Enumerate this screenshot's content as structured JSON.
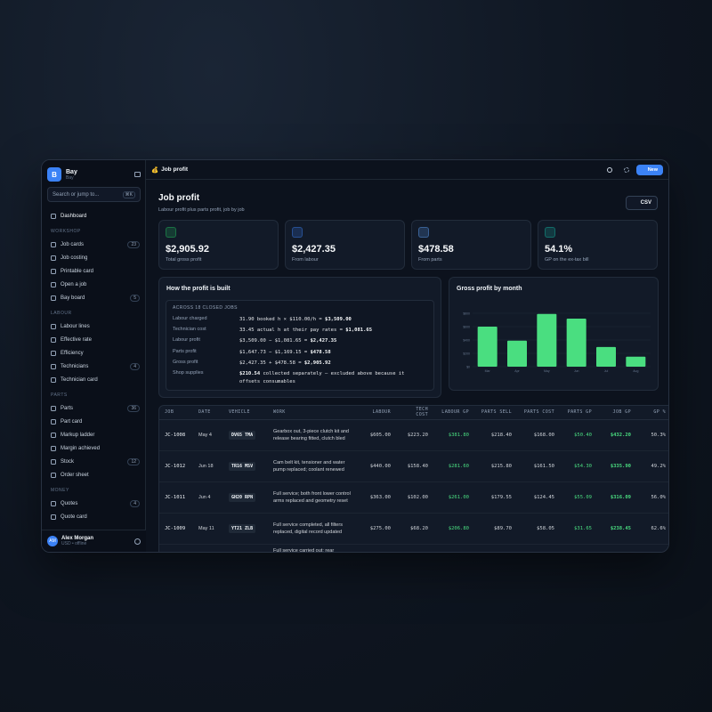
{
  "topbar": {
    "icon": "💰",
    "title": "Job profit",
    "new_button": "New"
  },
  "sidebar": {
    "brand": {
      "logo": "B",
      "name": "Bay",
      "sub": "Bay"
    },
    "search": {
      "placeholder": "Search or jump to...",
      "shortcut": "⌘K"
    },
    "top_items": [
      {
        "label": "Dashboard"
      }
    ],
    "sections": [
      {
        "title": "WORKSHOP",
        "items": [
          {
            "label": "Job cards",
            "count": "23"
          },
          {
            "label": "Job costing"
          },
          {
            "label": "Printable card"
          },
          {
            "label": "Open a job"
          },
          {
            "label": "Bay board",
            "count": "5"
          }
        ]
      },
      {
        "title": "LABOUR",
        "items": [
          {
            "label": "Labour lines"
          },
          {
            "label": "Effective rate"
          },
          {
            "label": "Efficiency"
          },
          {
            "label": "Technicians",
            "count": "4"
          },
          {
            "label": "Technician card"
          }
        ]
      },
      {
        "title": "PARTS",
        "items": [
          {
            "label": "Parts",
            "count": "36"
          },
          {
            "label": "Part card"
          },
          {
            "label": "Markup ladder"
          },
          {
            "label": "Margin achieved"
          },
          {
            "label": "Stock",
            "count": "12"
          },
          {
            "label": "Order sheet"
          }
        ]
      },
      {
        "title": "MONEY",
        "items": [
          {
            "label": "Quotes",
            "count": "4"
          },
          {
            "label": "Quote card"
          }
        ]
      }
    ],
    "user": {
      "initials": "AM",
      "name": "Alex Morgan",
      "status": "USD • offline"
    }
  },
  "header": {
    "title": "Job profit",
    "subtitle": "Labour profit plus parts profit, job by job",
    "csv_button": "CSV"
  },
  "kpis": [
    {
      "value": "$2,905.92",
      "label": "Total gross profit"
    },
    {
      "value": "$2,427.35",
      "label": "From labour"
    },
    {
      "value": "$478.58",
      "label": "From parts"
    },
    {
      "value": "54.1%",
      "label": "GP on the ex-tax bill"
    }
  ],
  "breakdown": {
    "title": "How the profit is built",
    "caption": "ACROSS 18 CLOSED JOBS",
    "rows": [
      {
        "label": "Labour charged",
        "expr": "31.90 booked h × $110.00/h =",
        "result": "$3,509.00"
      },
      {
        "label": "Technician cost",
        "expr": "33.45 actual h at their pay rates =",
        "result": "$1,081.65"
      },
      {
        "label": "Labour profit",
        "expr": "$3,509.00 − $1,081.65 =",
        "result": "$2,427.35"
      },
      {
        "label": "Parts profit",
        "expr": "$1,647.73 − $1,169.15 =",
        "result": "$478.58"
      },
      {
        "label": "Gross profit",
        "expr": "$2,427.35 + $478.58 =",
        "result": "$2,905.92"
      },
      {
        "label": "Shop supplies",
        "result": "$210.54",
        "note": "collected separately — excluded above because it offsets consumables"
      }
    ]
  },
  "profit_chart": {
    "type": "bar",
    "title": "Gross profit by month",
    "categories": [
      "Mar",
      "Apr",
      "May",
      "Jun",
      "Jul",
      "Aug"
    ],
    "values": [
      600,
      390,
      790,
      720,
      295,
      150
    ],
    "color": "#4ade80",
    "ylim": [
      0,
      800
    ],
    "yticks": [
      {
        "value": 0,
        "label": "$0"
      },
      {
        "value": 200,
        "label": "$200"
      },
      {
        "value": 400,
        "label": "$400"
      },
      {
        "value": 600,
        "label": "$600"
      },
      {
        "value": 800,
        "label": "$800"
      }
    ]
  },
  "table": {
    "columns": [
      "JOB",
      "DATE",
      "VEHICLE",
      "WORK",
      "LABOUR",
      "TECH COST",
      "LABOUR GP",
      "PARTS SELL",
      "PARTS COST",
      "PARTS GP",
      "JOB GP",
      "GP %"
    ],
    "rows": [
      [
        "JC-1008",
        "May 4",
        "DV65 TMA",
        "Gearbox out, 3-piece clutch kit and release bearing fitted, clutch bled",
        "$605.00",
        "$223.20",
        "$381.80",
        "$218.40",
        "$168.00",
        "$50.40",
        "$432.20",
        "50.3%"
      ],
      [
        "JC-1012",
        "Jun 18",
        "TR16 MSV",
        "Cam belt kit, tensioner and water pump replaced; coolant renewed",
        "$440.00",
        "$158.40",
        "$281.60",
        "$215.80",
        "$161.50",
        "$54.30",
        "$335.90",
        "49.2%"
      ],
      [
        "JC-1011",
        "Jun 4",
        "GH20 RPN",
        "Full service; both front lower control arms replaced and geometry reset",
        "$363.00",
        "$102.00",
        "$261.00",
        "$179.55",
        "$124.45",
        "$55.09",
        "$316.09",
        "56.0%"
      ],
      [
        "JC-1009",
        "May 11",
        "YT21 ZLB",
        "Full service completed, all filters replaced, digital record updated",
        "$275.00",
        "$68.20",
        "$206.80",
        "$89.70",
        "$58.05",
        "$31.65",
        "$238.45",
        "62.6%"
      ]
    ],
    "partial_row_work": "Full service carried out; rear"
  }
}
